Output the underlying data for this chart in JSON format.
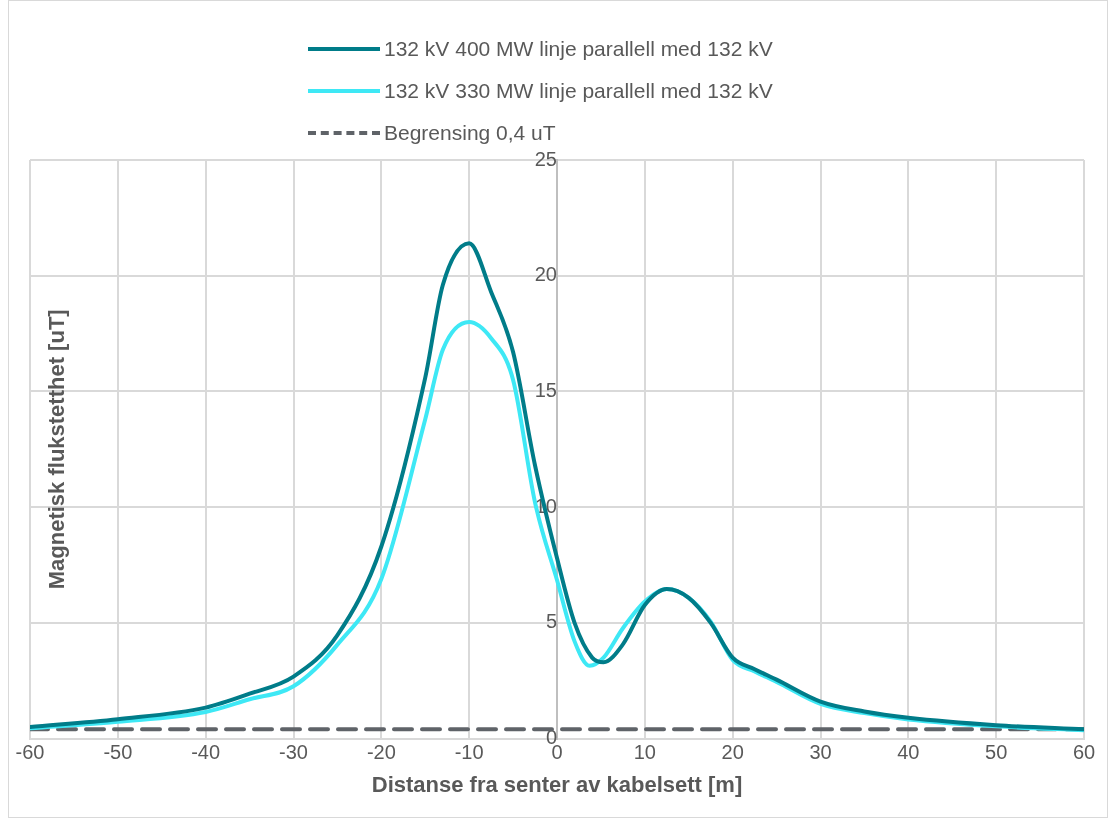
{
  "chart_data": {
    "type": "line",
    "xlabel": "Distanse fra senter av kabelsett [m]",
    "ylabel": "Magnetisk flukstetthet [uT]",
    "xlim": [
      -60,
      60
    ],
    "xticks": [
      -60,
      -50,
      -40,
      -30,
      -20,
      -10,
      0,
      10,
      20,
      30,
      40,
      50,
      60
    ],
    "ylim": [
      0,
      25
    ],
    "yticks": [
      0,
      5,
      10,
      15,
      20,
      25
    ],
    "grid": true,
    "legend": "top",
    "marker": "none",
    "series": [
      {
        "name": "132 kV 400 MW linje parallell med 132 kV",
        "color": "#007c89",
        "line_style": "solid",
        "x": [
          -60,
          -50,
          -40,
          -35,
          -30,
          -25,
          -20,
          -15,
          -13,
          -10,
          -7.5,
          -5,
          -2.5,
          0,
          2,
          4,
          5.3,
          7.5,
          10,
          12.5,
          15,
          17.5,
          20,
          22.5,
          25,
          30,
          35,
          40,
          50,
          60
        ],
        "values": [
          0.5,
          0.84,
          1.34,
          1.94,
          2.68,
          4.47,
          8.3,
          15.6,
          19.6,
          21.4,
          19.3,
          16.7,
          11.8,
          7.8,
          5.0,
          3.5,
          3.3,
          4.07,
          5.77,
          6.46,
          6.08,
          5.0,
          3.5,
          3.0,
          2.55,
          1.6,
          1.17,
          0.9,
          0.58,
          0.4
        ]
      },
      {
        "name": "132 kV 330 MW linje parallell med 132 kV",
        "color": "#3ee8f5",
        "line_style": "solid",
        "x": [
          -60,
          -50,
          -40,
          -35,
          -30,
          -25,
          -20,
          -15,
          -13,
          -10,
          -7.5,
          -5,
          -2.5,
          0,
          2,
          3.7,
          5.3,
          7.5,
          10,
          12.5,
          15,
          17.5,
          20,
          22.5,
          25,
          30,
          35,
          40,
          50,
          60
        ],
        "values": [
          0.45,
          0.73,
          1.15,
          1.7,
          2.26,
          4.06,
          6.9,
          13.8,
          16.8,
          18.0,
          17.3,
          15.5,
          10.2,
          6.85,
          4.2,
          3.15,
          3.5,
          4.77,
          5.92,
          6.46,
          6.08,
          5.05,
          3.4,
          2.9,
          2.45,
          1.5,
          1.1,
          0.83,
          0.53,
          0.36
        ]
      },
      {
        "name": "Begrensing 0,4 uT",
        "color": "#5f6368",
        "line_style": "dashed",
        "x": [
          -60,
          60
        ],
        "values": [
          0.4,
          0.4
        ]
      }
    ]
  }
}
